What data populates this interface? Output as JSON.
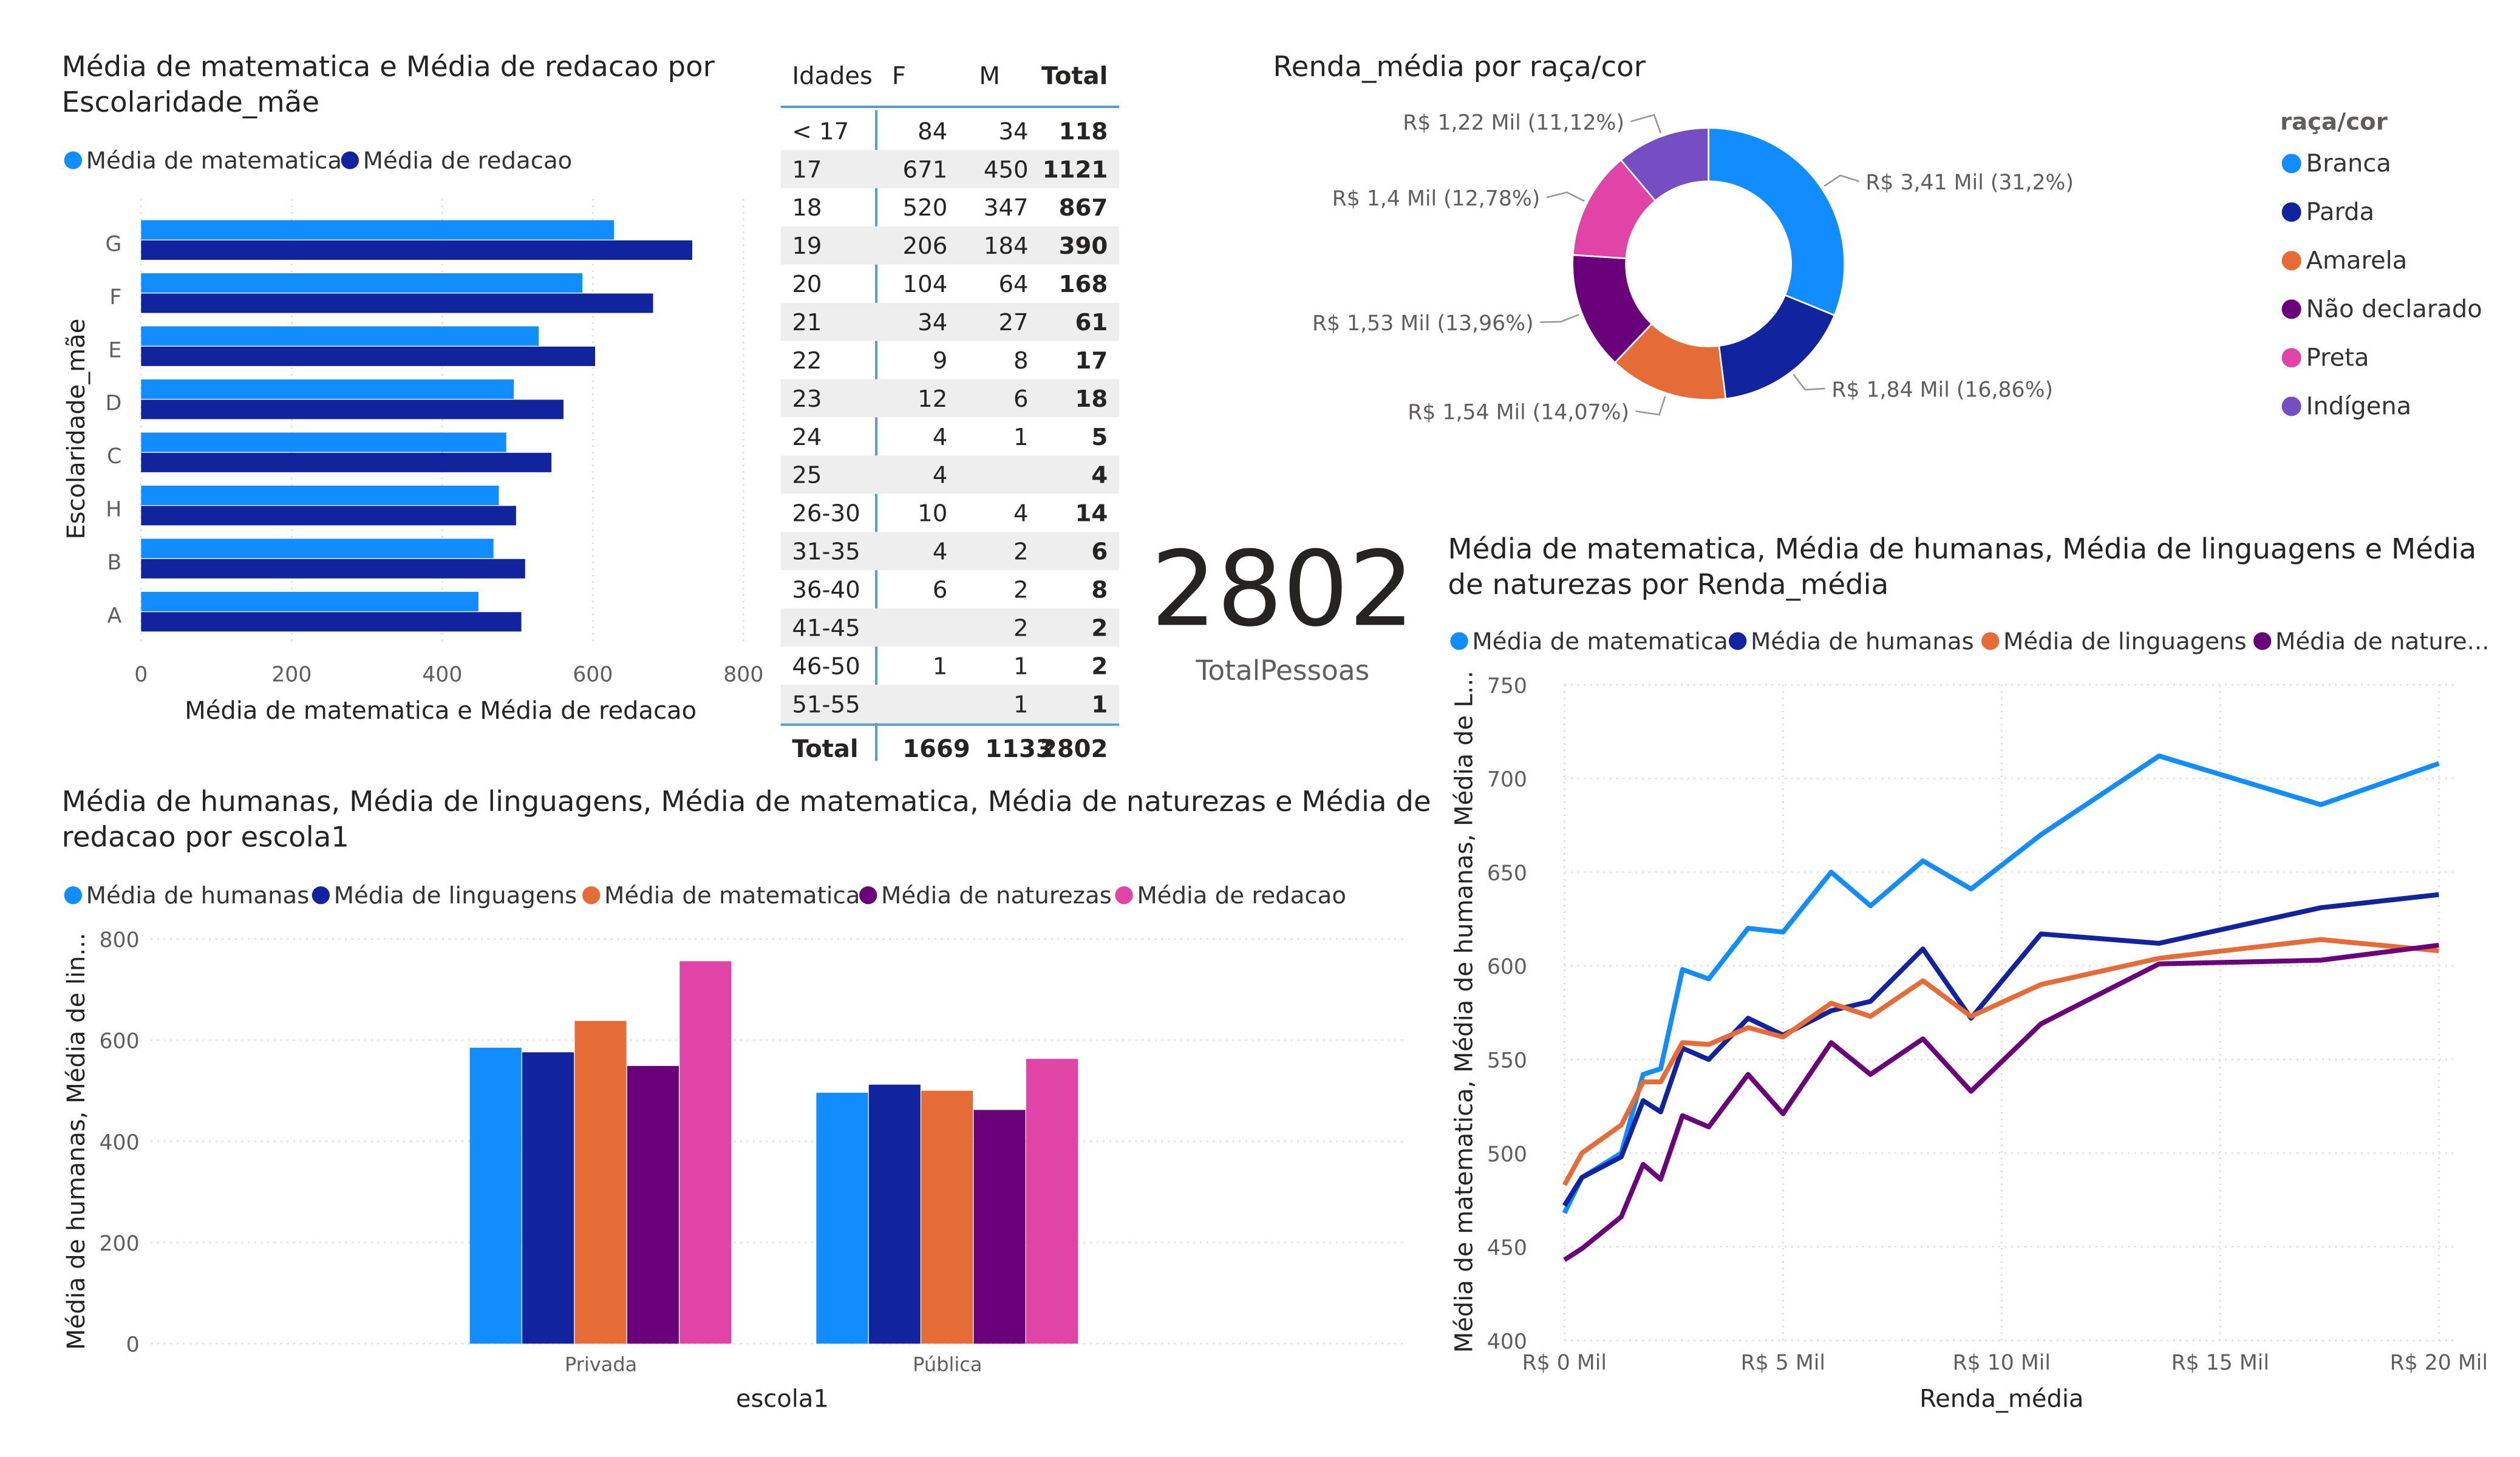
{
  "colors": {
    "light_blue": "#118DFF",
    "dark_blue": "#12239E",
    "orange": "#E66C37",
    "purple": "#6B007B",
    "pink": "#E044A7",
    "violet": "#744EC2",
    "table_line": "#5B9BD5",
    "stripe": "#EEEEEE"
  },
  "bar_chart": {
    "title": [
      "Média de matematica e Média de redacao por",
      "Escolaridade_mãe"
    ],
    "type": "bar",
    "orientation": "horizontal",
    "categories": [
      "G",
      "F",
      "E",
      "D",
      "C",
      "H",
      "B",
      "A"
    ],
    "series": [
      {
        "name": "Média de matematica",
        "values": [
          628,
          586,
          528,
          495,
          485,
          475,
          468,
          448
        ]
      },
      {
        "name": "Média de redacao",
        "values": [
          732,
          680,
          603,
          561,
          545,
          498,
          510,
          505
        ]
      }
    ],
    "xlabel": "Média de matematica e Média de redacao",
    "ylabel": "Escolaridade_mãe",
    "xlim": [
      0,
      800
    ],
    "xticks": [
      "0",
      "200",
      "400",
      "600",
      "800"
    ],
    "legend": "top-left"
  },
  "age_table": {
    "headers": [
      "Idades",
      "F",
      "M",
      "Total"
    ],
    "rows": [
      [
        "< 17",
        "84",
        "34",
        "118"
      ],
      [
        "17",
        "671",
        "450",
        "1121"
      ],
      [
        "18",
        "520",
        "347",
        "867"
      ],
      [
        "19",
        "206",
        "184",
        "390"
      ],
      [
        "20",
        "104",
        "64",
        "168"
      ],
      [
        "21",
        "34",
        "27",
        "61"
      ],
      [
        "22",
        "9",
        "8",
        "17"
      ],
      [
        "23",
        "12",
        "6",
        "18"
      ],
      [
        "24",
        "4",
        "1",
        "5"
      ],
      [
        "25",
        "4",
        "",
        "4"
      ],
      [
        "26-30",
        "10",
        "4",
        "14"
      ],
      [
        "31-35",
        "4",
        "2",
        "6"
      ],
      [
        "36-40",
        "6",
        "2",
        "8"
      ],
      [
        "41-45",
        "",
        "2",
        "2"
      ],
      [
        "46-50",
        "1",
        "1",
        "2"
      ],
      [
        "51-55",
        "",
        "1",
        "1"
      ]
    ],
    "total": [
      "Total",
      "1669",
      "1133",
      "2802"
    ]
  },
  "donut_chart": {
    "title": "Renda_média por raça/cor",
    "type": "pie",
    "legend_title": "raça/cor",
    "slices": [
      {
        "name": "Branca",
        "value": 3.41,
        "label": "R$ 3,41 Mil (31,2%)"
      },
      {
        "name": "Parda",
        "value": 1.84,
        "label": "R$ 1,84 Mil (16,86%)"
      },
      {
        "name": "Amarela",
        "value": 1.54,
        "label": "R$ 1,54 Mil (14,07%)"
      },
      {
        "name": "Não declarado",
        "value": 1.53,
        "label": "R$ 1,53 Mil (13,96%)"
      },
      {
        "name": "Preta",
        "value": 1.4,
        "label": "R$ 1,4 Mil (12,78%)"
      },
      {
        "name": "Indígena",
        "value": 1.22,
        "label": "R$ 1,22 Mil (11,12%)"
      }
    ],
    "legend": "right"
  },
  "card": {
    "value": "2802",
    "label": "TotalPessoas"
  },
  "line_chart": {
    "title": [
      "Média de matematica, Média de humanas, Média de linguagens e Média",
      "de naturezas por Renda_média"
    ],
    "type": "line",
    "x": [
      0,
      0.4,
      1.3,
      1.8,
      2.2,
      2.7,
      3.3,
      4.2,
      5.0,
      6.1,
      7.0,
      8.2,
      9.3,
      10.9,
      13.6,
      17.3,
      20.0
    ],
    "series": [
      {
        "name": "Média de matematica",
        "legend_label": "Média de matematica",
        "values": [
          468,
          487,
          500,
          542,
          545,
          598,
          593,
          620,
          618,
          650,
          632,
          656,
          641,
          670,
          712,
          686,
          708
        ]
      },
      {
        "name": "Média de humanas",
        "legend_label": "Média de humanas",
        "values": [
          472,
          487,
          498,
          528,
          522,
          556,
          550,
          572,
          563,
          576,
          581,
          609,
          572,
          617,
          612,
          631,
          638
        ]
      },
      {
        "name": "Média de linguagens",
        "legend_label": "Média de linguagens",
        "values": [
          483,
          500,
          515,
          538,
          538,
          559,
          558,
          567,
          562,
          580,
          573,
          592,
          573,
          590,
          604,
          614,
          608
        ]
      },
      {
        "name": "Média de naturezas",
        "legend_label": "Média de nature...",
        "values": [
          443,
          449,
          466,
          494,
          486,
          520,
          514,
          542,
          521,
          559,
          542,
          561,
          533,
          569,
          601,
          603,
          611
        ]
      }
    ],
    "xlabel": "Renda_média",
    "ylabel": "Média de matematica, Média de humanas, Média de L...",
    "xlim": [
      0,
      20
    ],
    "ylim": [
      400,
      750
    ],
    "xticks": [
      {
        "v": 0,
        "label": "R$ 0 Mil"
      },
      {
        "v": 5,
        "label": "R$ 5 Mil"
      },
      {
        "v": 10,
        "label": "R$ 10 Mil"
      },
      {
        "v": 15,
        "label": "R$ 15 Mil"
      },
      {
        "v": 20,
        "label": "R$ 20 Mil"
      }
    ],
    "yticks": [
      400,
      450,
      500,
      550,
      600,
      650,
      700,
      750
    ],
    "grid": true,
    "legend": "top-left"
  },
  "column_chart": {
    "title": [
      "Média de humanas, Média de linguagens, Média de matematica, Média de naturezas e Média de",
      "redacao por escola1"
    ],
    "type": "bar",
    "categories": [
      "Privada",
      "Pública"
    ],
    "series": [
      {
        "name": "Média de humanas",
        "values": [
          585,
          496
        ]
      },
      {
        "name": "Média de linguagens",
        "values": [
          576,
          512
        ]
      },
      {
        "name": "Média de matematica",
        "values": [
          638,
          500
        ]
      },
      {
        "name": "Média de naturezas",
        "values": [
          549,
          462
        ]
      },
      {
        "name": "Média de redacao",
        "values": [
          756,
          563
        ]
      }
    ],
    "xlabel": "escola1",
    "ylabel": "Média de humanas, Média de lin...",
    "ylim": [
      0,
      800
    ],
    "yticks": [
      0,
      200,
      400,
      600,
      800
    ],
    "grid": true,
    "legend": "top-left"
  }
}
